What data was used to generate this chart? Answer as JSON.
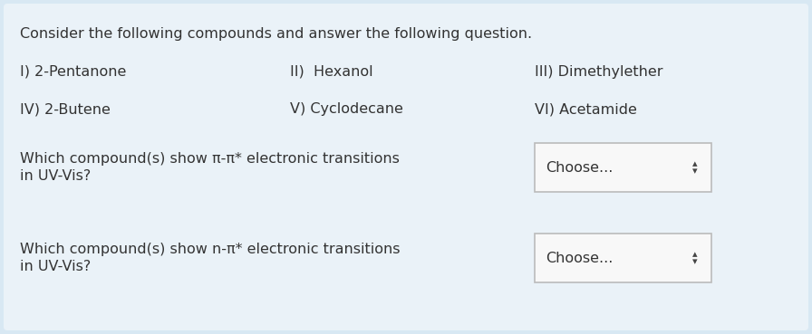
{
  "bg_color": "#d8e8f3",
  "card_color": "#eaf2f8",
  "title": "Consider the following compounds and answer the following question.",
  "row1": [
    "I) 2-Pentanone",
    "II)  Hexanol",
    "III) Dimethylether"
  ],
  "row2": [
    "IV) 2-Butene",
    "V) Cyclodecane",
    "VI) Acetamide"
  ],
  "question1_line1": "Which compound(s) show π-π* electronic transitions",
  "question1_line2": "in UV-Vis?",
  "question2_line1": "Which compound(s) show n-π* electronic transitions",
  "question2_line2": "in UV-Vis?",
  "choose_text": "Choose...",
  "text_color": "#333333",
  "box_color": "#f8f8f8",
  "box_border": "#bbbbbb",
  "font_size": 11.5
}
